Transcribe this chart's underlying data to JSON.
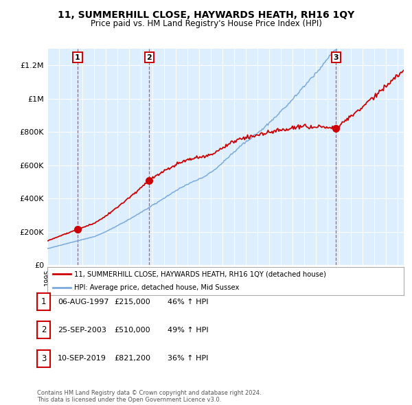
{
  "title_line1": "11, SUMMERHILL CLOSE, HAYWARDS HEATH, RH16 1QY",
  "title_line2": "Price paid vs. HM Land Registry's House Price Index (HPI)",
  "house_color": "#cc0000",
  "hpi_color": "#7aaadd",
  "plot_bg_color": "#ddeeff",
  "ylim": [
    0,
    1300000
  ],
  "yticks": [
    0,
    200000,
    400000,
    600000,
    800000,
    1000000,
    1200000
  ],
  "ytick_labels": [
    "£0",
    "£200K",
    "£400K",
    "£600K",
    "£800K",
    "£1M",
    "£1.2M"
  ],
  "xmin": 1995.0,
  "xmax": 2025.5,
  "sales": [
    {
      "date_num": 1997.58,
      "price": 215000,
      "label": "1"
    },
    {
      "date_num": 2003.72,
      "price": 510000,
      "label": "2"
    },
    {
      "date_num": 2019.69,
      "price": 821200,
      "label": "3"
    }
  ],
  "legend_house_label": "11, SUMMERHILL CLOSE, HAYWARDS HEATH, RH16 1QY (detached house)",
  "legend_hpi_label": "HPI: Average price, detached house, Mid Sussex",
  "footnote": "Contains HM Land Registry data © Crown copyright and database right 2024.\nThis data is licensed under the Open Government Licence v3.0.",
  "table_rows": [
    {
      "num": "1",
      "date": "06-AUG-1997",
      "price": "£215,000",
      "pct": "46% ↑ HPI"
    },
    {
      "num": "2",
      "date": "25-SEP-2003",
      "price": "£510,000",
      "pct": "49% ↑ HPI"
    },
    {
      "num": "3",
      "date": "10-SEP-2019",
      "price": "£821,200",
      "pct": "36% ↑ HPI"
    }
  ]
}
